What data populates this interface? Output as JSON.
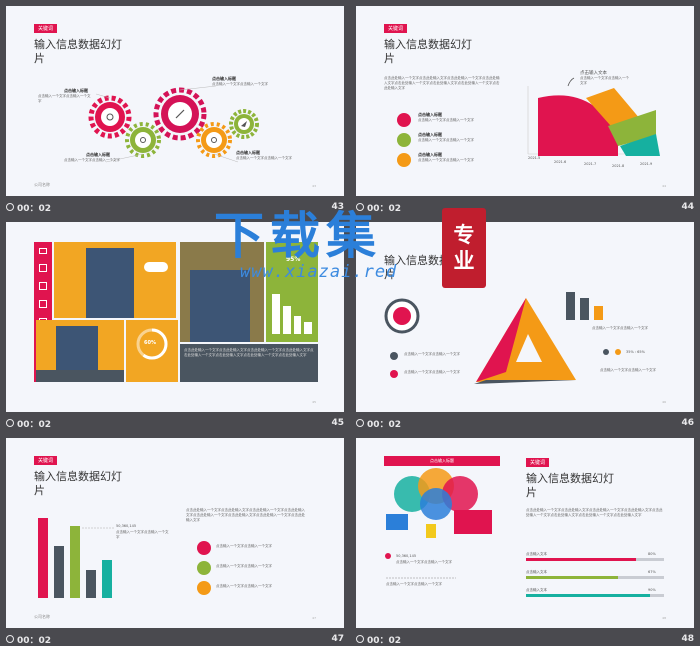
{
  "common": {
    "tag": "关键词",
    "title": "输入信息数据幻灯片",
    "footer": "公司名称",
    "heading_ph": "点击输入标题",
    "text_short": "点击输入一个文字点击输入一个文字",
    "text_long": "点击此处输入一个文字点击此处输入文字点击此处输入一个文字点击此处输入文字点击此处输入一个文字点击此处输入文字点击此处输入一个文字点击此处输入文字"
  },
  "slides": [
    {
      "num": "43",
      "time": "00：02"
    },
    {
      "num": "44",
      "time": "00：02",
      "callout": "点击输入文本",
      "x_ticks": [
        "2021.5",
        "2021.6",
        "2021.7",
        "2021.8",
        "2021.9"
      ]
    },
    {
      "num": "45",
      "time": "00：02",
      "pct_a": "95%",
      "pct_b": "60%"
    },
    {
      "num": "46",
      "time": "00：02",
      "ratio": "35% : 65%"
    },
    {
      "num": "47",
      "time": "00：02",
      "value": "50,360,145"
    },
    {
      "num": "48",
      "time": "00：02",
      "value": "50,360,145",
      "bars": [
        {
          "label": "点击输入文本",
          "value": "80%",
          "fill": 0.8
        },
        {
          "label": "点击输入文本",
          "value": "67%",
          "fill": 0.67
        },
        {
          "label": "点击输入文本",
          "value": "90%",
          "fill": 0.9
        }
      ]
    }
  ],
  "watermark": {
    "main": "下载集",
    "seal_a": "专",
    "seal_b": "业",
    "url": "www.xiazai.red"
  },
  "colors": {
    "pink": "#e0144f",
    "green": "#8db43a",
    "orange": "#f49a16",
    "teal": "#16b0a0",
    "slate": "#4a5560",
    "accent_blue": "#2b7fd9"
  }
}
